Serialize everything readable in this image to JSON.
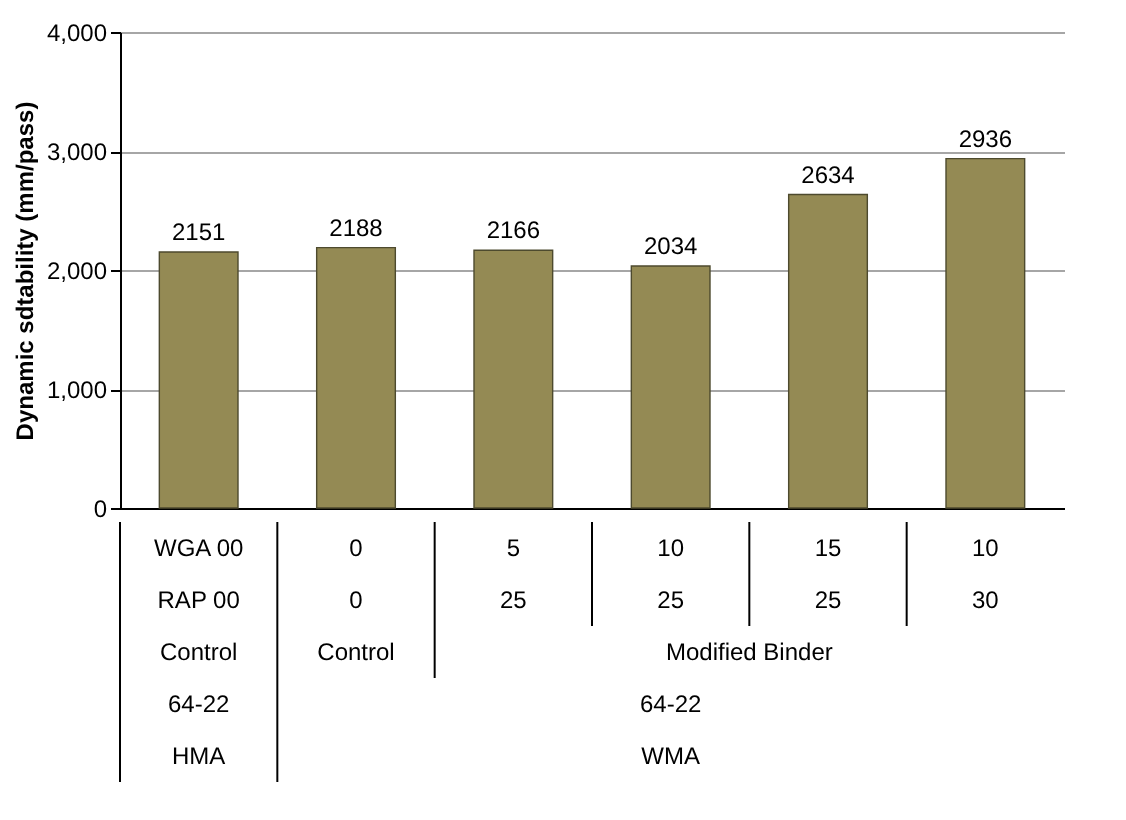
{
  "chart_data": {
    "type": "bar",
    "ylabel": "Dynamic sdtability (mm/pass)",
    "categories": [
      "WGA 00",
      "0",
      "5",
      "10",
      "15",
      "10"
    ],
    "values": [
      2151,
      2188,
      2166,
      2034,
      2634,
      2936
    ],
    "color": "#948a54",
    "ylim": [
      0,
      4000
    ],
    "yticks": [
      0,
      {
        "value": 1000,
        "label": "1,000"
      },
      {
        "value": 2000,
        "label": "2,000"
      },
      {
        "value": 3000,
        "label": "3,000"
      },
      {
        "value": 4000,
        "label": "4,000"
      }
    ],
    "grid": "y",
    "data_labels": true,
    "annotations": [
      "RAP 00",
      "0",
      "25",
      "25",
      "25",
      "30",
      "Control",
      "Control",
      "Modified Binder",
      "64-22",
      "64-22",
      "HMA",
      "WMA"
    ]
  }
}
